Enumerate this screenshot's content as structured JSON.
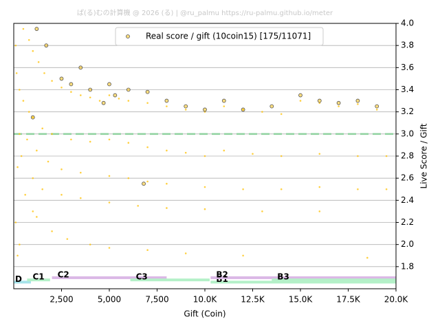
{
  "chart_data": {
    "type": "scatter",
    "title": "ぱ(る)むの計算機 @ 2026 (る) | @ru_palmu  https://ru-palmu.github.io/meter",
    "x_label": "Gift (Coin)",
    "y_label": "Live Score / Gift",
    "xlim": [
      0,
      20000
    ],
    "ylim": [
      1.6,
      4.0
    ],
    "xticks": [
      {
        "value": 2500,
        "label": "2,500"
      },
      {
        "value": 5000,
        "label": "5,000"
      },
      {
        "value": 7500,
        "label": "7,500"
      },
      {
        "value": 10000,
        "label": "10.0K"
      },
      {
        "value": 12500,
        "label": "12.5K"
      },
      {
        "value": 15000,
        "label": "15.0K"
      },
      {
        "value": 17500,
        "label": "17.5K"
      },
      {
        "value": 20000,
        "label": "20.0K"
      }
    ],
    "yticks": [
      1.8,
      {
        "value": 2,
        "label": "2.0"
      },
      2.2,
      2.4,
      2.6,
      2.8,
      {
        "value": 3,
        "label": "3.0"
      },
      3.2,
      3.4,
      3.6,
      3.8,
      {
        "value": 4,
        "label": "4.0"
      }
    ],
    "grid": true,
    "legend": "upper center",
    "reference_line": {
      "value": 3,
      "color": "#8fd19e"
    },
    "series": [
      {
        "color": "#ffc000",
        "x": [
          500,
          800,
          1000,
          1300,
          1600,
          2000,
          2500,
          3000,
          3500,
          4000,
          4500,
          5000,
          5500,
          6000,
          7000,
          8000,
          9000,
          10000,
          11000,
          12000,
          13000,
          14000,
          15000,
          16000,
          17000,
          18000,
          19000,
          300,
          500,
          800,
          1000,
          1500,
          2000,
          3000,
          4000,
          5000,
          6000,
          7000,
          8000,
          9000,
          10000,
          11000,
          12500,
          14000,
          16000,
          18000,
          19500,
          300,
          700,
          1200,
          1800,
          2500,
          3500,
          5000,
          6000,
          7000,
          8000,
          10000,
          12000,
          14000,
          16000,
          18000,
          19500,
          400,
          1000,
          1500,
          2500,
          3500,
          5000,
          6500,
          8000,
          10000,
          13000,
          16000,
          200,
          600,
          1000,
          1200,
          2000,
          2800,
          4000,
          5000,
          7000,
          9000,
          12000,
          18500,
          100,
          150,
          100,
          300,
          200
        ],
        "values": [
          3.95,
          3.85,
          3.75,
          3.65,
          3.55,
          3.48,
          3.42,
          3.38,
          3.35,
          3.33,
          3.3,
          3.35,
          3.32,
          3.3,
          3.28,
          3.25,
          3.22,
          3.2,
          3.25,
          3.22,
          3.2,
          3.18,
          3.3,
          3.28,
          3.25,
          3.27,
          3.22,
          3.4,
          3.3,
          3.2,
          3.15,
          3.05,
          3.0,
          2.95,
          2.93,
          2.95,
          2.92,
          2.88,
          2.85,
          2.83,
          2.8,
          2.85,
          2.82,
          2.8,
          2.82,
          2.8,
          2.8,
          3.0,
          2.95,
          2.85,
          2.75,
          2.68,
          2.65,
          2.62,
          2.6,
          2.57,
          2.55,
          2.52,
          2.5,
          2.5,
          2.52,
          2.5,
          2.5,
          2.8,
          2.6,
          2.5,
          2.45,
          2.42,
          2.38,
          2.35,
          2.33,
          2.32,
          2.3,
          2.3,
          2.7,
          2.45,
          2.3,
          2.25,
          2.12,
          2.05,
          2.0,
          1.97,
          1.95,
          1.92,
          1.9,
          1.88,
          3.8,
          3.55,
          2.2,
          2.0,
          1.9
        ]
      },
      {
        "name": "Real score / gift (10coin15) [175/11071]",
        "color": "#ffc000",
        "x": [
          1200,
          1700,
          2500,
          3000,
          3500,
          4000,
          5000,
          5300,
          6000,
          7000,
          8000,
          9000,
          10000,
          11000,
          12000,
          13500,
          15000,
          16000,
          17000,
          18000,
          19000,
          4700,
          6800,
          1000
        ],
        "values": [
          3.95,
          3.8,
          3.5,
          3.45,
          3.6,
          3.4,
          3.45,
          3.35,
          3.4,
          3.38,
          3.3,
          3.25,
          3.22,
          3.3,
          3.22,
          3.25,
          3.35,
          3.3,
          3.28,
          3.3,
          3.25,
          3.28,
          2.55,
          3.15
        ]
      }
    ],
    "bands": [
      {
        "label": "D",
        "x0": 0,
        "x1": 900,
        "y": 1.66,
        "color": "#a6e3ea"
      },
      {
        "label": "C1",
        "x0": 700,
        "x1": 1900,
        "y": 1.68,
        "color": "#b4f0c8"
      },
      {
        "label": "C2",
        "x0": 2000,
        "x1": 8000,
        "y": 1.7,
        "color": "#dbb8e6"
      },
      {
        "label": "C3",
        "x0": 6100,
        "x1": 10250,
        "y": 1.68,
        "color": "#b4f0c8"
      },
      {
        "label": "B1",
        "x0": 10300,
        "x1": 20000,
        "y": 1.66,
        "color": "#b4f0c8"
      },
      {
        "label": "B2",
        "x0": 10300,
        "x1": 20000,
        "y": 1.7,
        "color": "#dbb8e6"
      },
      {
        "label": "B3",
        "x0": 13500,
        "x1": 20000,
        "y": 1.68,
        "color": "#b4f0c8"
      }
    ]
  }
}
